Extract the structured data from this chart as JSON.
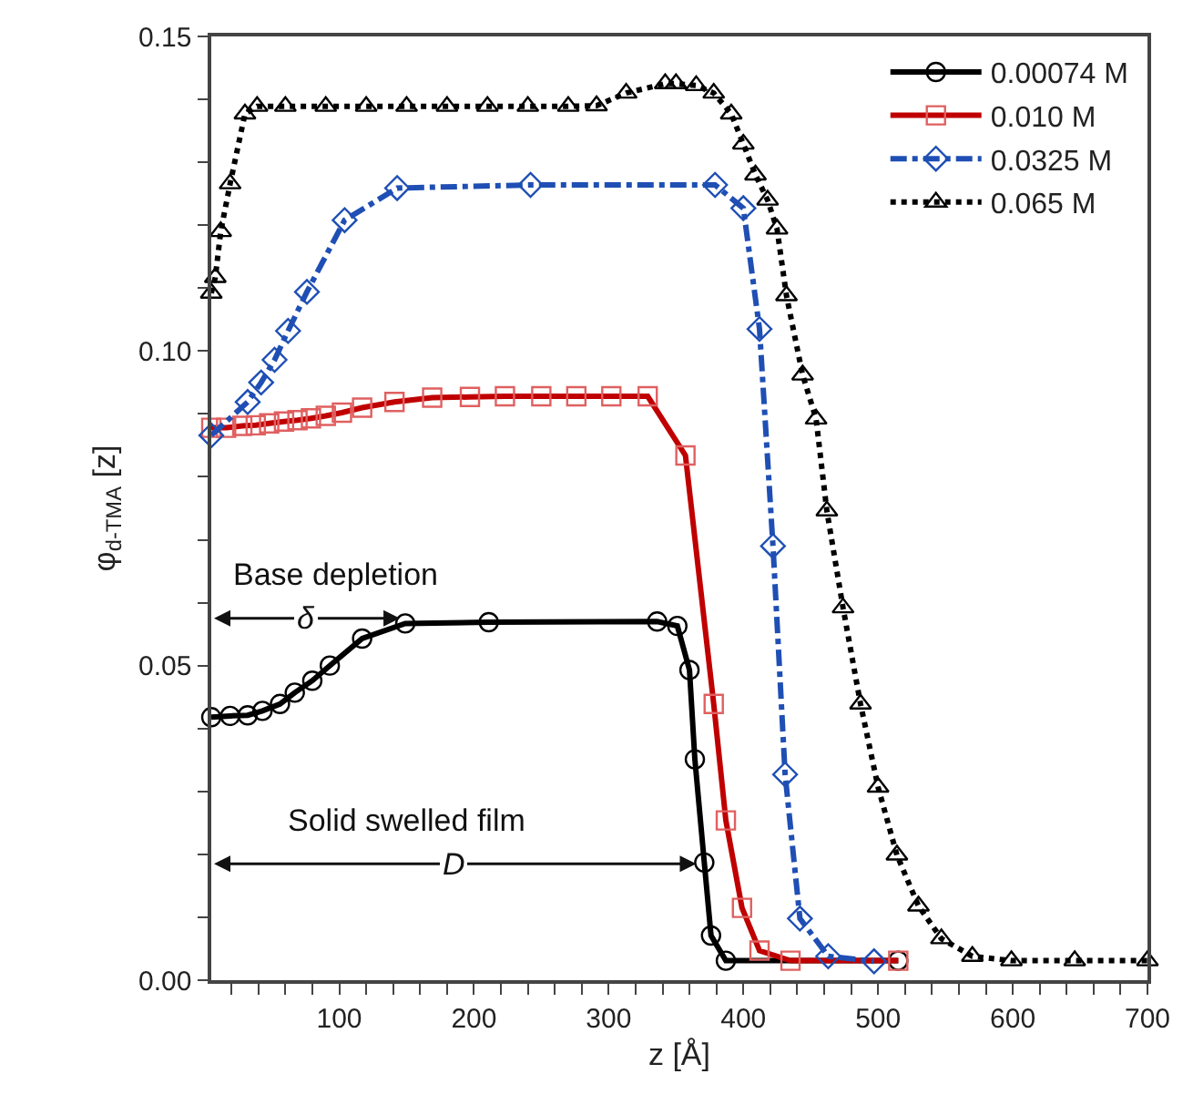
{
  "chart_data": {
    "type": "line",
    "xlabel": "z [Å]",
    "ylabel": "φ$_{d-TMA}$ [z]",
    "xlim": [
      5,
      700
    ],
    "ylim": [
      0,
      0.15
    ],
    "xticks": [
      {
        "value": 20,
        "label": null
      },
      {
        "value": 40,
        "label": null
      },
      {
        "value": 60,
        "label": null
      },
      {
        "value": 80,
        "label": null
      },
      100,
      {
        "value": 120,
        "label": null
      },
      {
        "value": 140,
        "label": null
      },
      {
        "value": 160,
        "label": null
      },
      {
        "value": 180,
        "label": null
      },
      200,
      {
        "value": 220,
        "label": null
      },
      {
        "value": 240,
        "label": null
      },
      {
        "value": 260,
        "label": null
      },
      {
        "value": 280,
        "label": null
      },
      300,
      {
        "value": 320,
        "label": null
      },
      {
        "value": 340,
        "label": null
      },
      {
        "value": 360,
        "label": null
      },
      {
        "value": 380,
        "label": null
      },
      400,
      {
        "value": 420,
        "label": null
      },
      {
        "value": 440,
        "label": null
      },
      {
        "value": 460,
        "label": null
      },
      {
        "value": 480,
        "label": null
      },
      500,
      {
        "value": 520,
        "label": null
      },
      {
        "value": 540,
        "label": null
      },
      {
        "value": 560,
        "label": null
      },
      {
        "value": 580,
        "label": null
      },
      600,
      {
        "value": 620,
        "label": null
      },
      {
        "value": 640,
        "label": null
      },
      {
        "value": 660,
        "label": null
      },
      {
        "value": 680,
        "label": null
      },
      700
    ],
    "yticks": [
      {
        "value": 0,
        "label": "0.00"
      },
      {
        "value": 0.01,
        "label": null
      },
      {
        "value": 0.02,
        "label": null
      },
      {
        "value": 0.03,
        "label": null
      },
      {
        "value": 0.04,
        "label": null
      },
      {
        "value": 0.05,
        "label": "0.05"
      },
      {
        "value": 0.06,
        "label": null
      },
      {
        "value": 0.07,
        "label": null
      },
      {
        "value": 0.08,
        "label": null
      },
      {
        "value": 0.09,
        "label": null
      },
      {
        "value": 0.1,
        "label": "0.10"
      },
      {
        "value": 0.11,
        "label": null
      },
      {
        "value": 0.12,
        "label": null
      },
      {
        "value": 0.13,
        "label": null
      },
      {
        "value": 0.14,
        "label": null
      },
      {
        "value": 0.15,
        "label": "0.15"
      }
    ],
    "legend": "top right",
    "series": [
      {
        "name": "0.00074 M",
        "color": "#000000",
        "marker": "circle",
        "line_style": "solid",
        "x": [
          5,
          19,
          32,
          43,
          56,
          67,
          80,
          93,
          117,
          149,
          211,
          336,
          351,
          360,
          364,
          371,
          376,
          387,
          515
        ],
        "values": [
          0.0418,
          0.042,
          0.0421,
          0.0428,
          0.0439,
          0.0457,
          0.0476,
          0.05,
          0.0543,
          0.0567,
          0.0569,
          0.057,
          0.0563,
          0.0493,
          0.0351,
          0.0187,
          0.0071,
          0.0031,
          0.0031
        ]
      },
      {
        "name": "0.010 M",
        "color": "#c00000",
        "marker": "square",
        "line_style": "solid",
        "x": [
          5,
          16,
          28,
          38,
          48,
          59,
          69,
          79,
          90,
          102,
          117,
          141,
          169,
          197,
          223,
          250,
          276,
          302,
          329,
          357,
          378,
          387,
          399,
          412,
          435,
          515
        ],
        "values": [
          0.0878,
          0.0878,
          0.0881,
          0.0882,
          0.0885,
          0.0888,
          0.089,
          0.0893,
          0.0897,
          0.0902,
          0.091,
          0.0919,
          0.0926,
          0.0927,
          0.0928,
          0.0928,
          0.0928,
          0.0928,
          0.0928,
          0.0834,
          0.0439,
          0.0254,
          0.0115,
          0.0047,
          0.0031,
          0.0031
        ]
      },
      {
        "name": "0.0325 M",
        "color": "#1f4fb4",
        "marker": "diamond",
        "line_style": "dashed",
        "x": [
          5,
          32,
          42,
          52,
          62,
          76,
          104,
          143,
          242,
          379,
          400,
          412,
          422,
          431,
          442,
          463,
          497
        ],
        "values": [
          0.0866,
          0.0919,
          0.095,
          0.0986,
          0.1032,
          0.1094,
          0.1208,
          0.1259,
          0.1264,
          0.1264,
          0.1227,
          0.1035,
          0.069,
          0.0327,
          0.0098,
          0.0038,
          0.003
        ]
      },
      {
        "name": "0.065 M",
        "color": "#000000",
        "marker": "triangle",
        "line_style": "dotted",
        "x": [
          5,
          8,
          12,
          19,
          30,
          39,
          60,
          90,
          120,
          150,
          180,
          210,
          240,
          270,
          291,
          313,
          342,
          350,
          365,
          378,
          391,
          400,
          409,
          418,
          425,
          432,
          444,
          454,
          462,
          474,
          487,
          500,
          514,
          530,
          547,
          570,
          599,
          646,
          700
        ],
        "values": [
          0.1092,
          0.1117,
          0.119,
          0.1266,
          0.1377,
          0.1389,
          0.1389,
          0.1389,
          0.1389,
          0.1389,
          0.1389,
          0.1389,
          0.1389,
          0.1389,
          0.139,
          0.141,
          0.1425,
          0.1425,
          0.1422,
          0.141,
          0.1377,
          0.1329,
          0.128,
          0.124,
          0.1194,
          0.1088,
          0.0962,
          0.0892,
          0.0746,
          0.0592,
          0.0439,
          0.0307,
          0.0199,
          0.0118,
          0.0066,
          0.0038,
          0.0031,
          0.0031,
          0.0031
        ]
      }
    ],
    "annotations": [
      "Base depletion",
      {
        "text": "δ",
        "x": 75,
        "y": 0.0575
      },
      "Solid swelled film",
      {
        "text": "D",
        "x": 185,
        "y": 0.0185
      }
    ]
  }
}
